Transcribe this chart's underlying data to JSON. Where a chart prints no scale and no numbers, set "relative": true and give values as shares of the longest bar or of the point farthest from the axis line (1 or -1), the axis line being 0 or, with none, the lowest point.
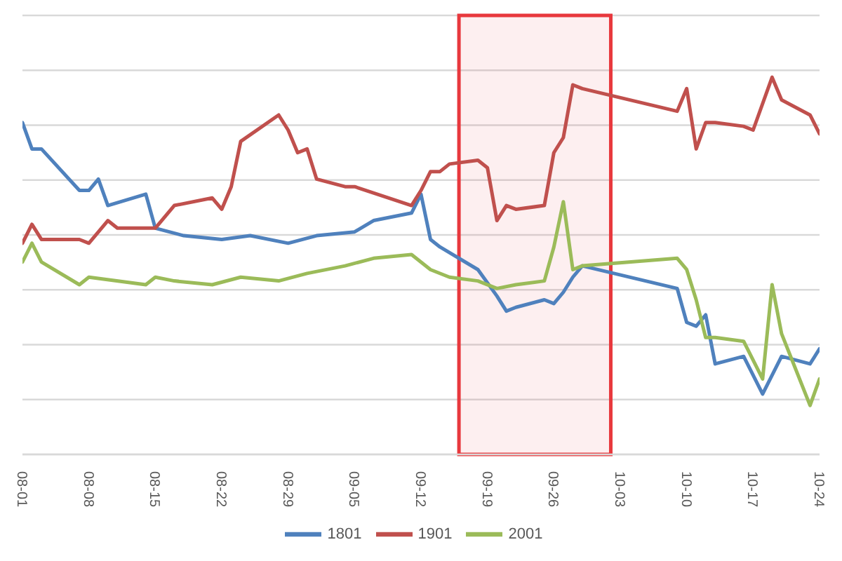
{
  "chart_data": {
    "type": "line",
    "relative": true,
    "xlim": [
      "--08-01",
      "--10-24"
    ],
    "xticks": [
      {
        "value": "--08-01",
        "label": "08-01"
      },
      {
        "value": "--08-08",
        "label": "08-08"
      },
      {
        "value": "--08-15",
        "label": "08-15"
      },
      {
        "value": "--08-22",
        "label": "08-22"
      },
      {
        "value": "--08-29",
        "label": "08-29"
      },
      {
        "value": "--09-05",
        "label": "09-05"
      },
      {
        "value": "--09-12",
        "label": "09-12"
      },
      {
        "value": "--09-19",
        "label": "09-19"
      },
      {
        "value": "--09-26",
        "label": "09-26"
      },
      {
        "value": "--10-03",
        "label": "10-03"
      },
      {
        "value": "--10-10",
        "label": "10-10"
      },
      {
        "value": "--10-17",
        "label": "10-17"
      },
      {
        "value": "--10-24",
        "label": "10-24"
      }
    ],
    "grid": "y",
    "legend": "bottom",
    "bands": [
      {
        "axis": "x",
        "from": "--09-16",
        "to": "--10-02",
        "color": "#e8383d"
      }
    ],
    "series": [
      {
        "name": "1801",
        "color": "#4f81bd",
        "x": [
          "--08-01",
          "--08-02",
          "--08-03",
          "--08-07",
          "--08-08",
          "--08-09",
          "--08-10",
          "--08-14",
          "--08-15",
          "--08-18",
          "--08-22",
          "--08-25",
          "--08-29",
          "--09-01",
          "--09-05",
          "--09-07",
          "--09-11",
          "--09-12",
          "--09-13",
          "--09-14",
          "--09-18",
          "--09-20",
          "--09-21",
          "--09-22",
          "--09-25",
          "--09-26",
          "--09-27",
          "--09-28",
          "--09-29",
          "--10-09",
          "--10-10",
          "--10-11",
          "--10-12",
          "--10-13",
          "--10-16",
          "--10-18",
          "--10-20",
          "--10-23",
          "--10-24"
        ],
        "values": [
          0.88,
          0.81,
          0.81,
          0.7,
          0.7,
          0.73,
          0.66,
          0.69,
          0.6,
          0.58,
          0.57,
          0.58,
          0.56,
          0.58,
          0.59,
          0.62,
          0.64,
          0.69,
          0.57,
          0.55,
          0.49,
          0.42,
          0.38,
          0.39,
          0.41,
          0.4,
          0.43,
          0.47,
          0.5,
          0.44,
          0.35,
          0.34,
          0.37,
          0.24,
          0.26,
          0.16,
          0.26,
          0.24,
          0.28
        ]
      },
      {
        "name": "1901",
        "color": "#c0504d",
        "x": [
          "--08-01",
          "--08-02",
          "--08-03",
          "--08-07",
          "--08-08",
          "--08-10",
          "--08-11",
          "--08-15",
          "--08-17",
          "--08-21",
          "--08-22",
          "--08-23",
          "--08-24",
          "--08-28",
          "--08-29",
          "--08-30",
          "--08-31",
          "--09-01",
          "--09-04",
          "--09-05",
          "--09-11",
          "--09-12",
          "--09-13",
          "--09-14",
          "--09-15",
          "--09-18",
          "--09-19",
          "--09-20",
          "--09-21",
          "--09-22",
          "--09-25",
          "--09-26",
          "--09-27",
          "--09-28",
          "--09-29",
          "--10-09",
          "--10-10",
          "--10-11",
          "--10-12",
          "--10-13",
          "--10-16",
          "--10-17",
          "--10-19",
          "--10-20",
          "--10-23",
          "--10-24"
        ],
        "values": [
          0.56,
          0.61,
          0.57,
          0.57,
          0.56,
          0.62,
          0.6,
          0.6,
          0.66,
          0.68,
          0.65,
          0.71,
          0.83,
          0.9,
          0.86,
          0.8,
          0.81,
          0.73,
          0.71,
          0.71,
          0.66,
          0.7,
          0.75,
          0.75,
          0.77,
          0.78,
          0.76,
          0.62,
          0.66,
          0.65,
          0.66,
          0.8,
          0.84,
          0.98,
          0.97,
          0.91,
          0.97,
          0.81,
          0.88,
          0.88,
          0.87,
          0.86,
          1,
          0.94,
          0.9,
          0.85
        ]
      },
      {
        "name": "2001",
        "color": "#9bbb59",
        "x": [
          "--08-01",
          "--08-02",
          "--08-03",
          "--08-07",
          "--08-08",
          "--08-14",
          "--08-15",
          "--08-17",
          "--08-21",
          "--08-24",
          "--08-28",
          "--08-31",
          "--09-04",
          "--09-07",
          "--09-11",
          "--09-13",
          "--09-15",
          "--09-18",
          "--09-20",
          "--09-22",
          "--09-25",
          "--09-26",
          "--09-27",
          "--09-28",
          "--09-29",
          "--10-09",
          "--10-10",
          "--10-11",
          "--10-12",
          "--10-13",
          "--10-16",
          "--10-18",
          "--10-19",
          "--10-20",
          "--10-23",
          "--10-24"
        ],
        "values": [
          0.51,
          0.56,
          0.51,
          0.45,
          0.47,
          0.45,
          0.47,
          0.46,
          0.45,
          0.47,
          0.46,
          0.48,
          0.5,
          0.52,
          0.53,
          0.49,
          0.47,
          0.46,
          0.44,
          0.45,
          0.46,
          0.55,
          0.67,
          0.49,
          0.5,
          0.52,
          0.49,
          0.41,
          0.31,
          0.31,
          0.3,
          0.2,
          0.45,
          0.32,
          0.13,
          0.2
        ]
      }
    ]
  }
}
